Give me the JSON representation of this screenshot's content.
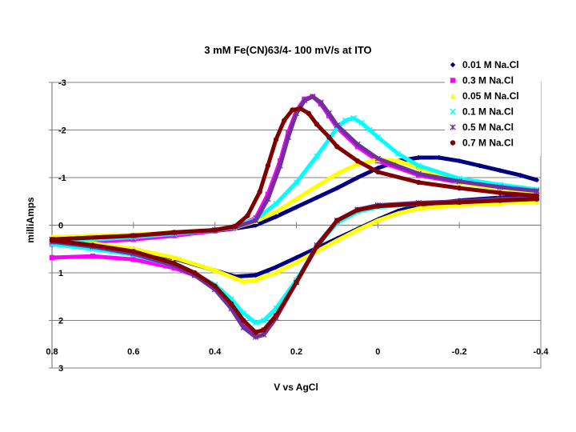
{
  "chart_data": {
    "type": "scatter",
    "title": "3 mM Fe(CN)63/4-  100 mV/s at ITO",
    "xlabel": "V vs AgCl",
    "ylabel": "milliAmps",
    "xlim": [
      0.8,
      -0.4
    ],
    "ylim": [
      -3,
      3
    ],
    "y_axis_reversed": true,
    "x_axis_reversed": true,
    "x_ticks": [
      0.8,
      0.6,
      0.4,
      0.2,
      0,
      -0.2,
      -0.4
    ],
    "x_tick_labels": [
      "0.8",
      "0.6",
      "0.4",
      "0.2",
      "0",
      "-0.2",
      "-0.4"
    ],
    "y_ticks": [
      -3,
      -2,
      -1,
      0,
      1,
      2,
      3
    ],
    "y_tick_labels": [
      "-3",
      "-2",
      "-1",
      "0",
      "1",
      "2",
      "3"
    ],
    "grid": "horizontal major gridlines",
    "legend_position": "top-right",
    "series": [
      {
        "name": "0.01 M Na.Cl",
        "color": "#000080",
        "marker": "diamond",
        "forward": {
          "x": [
            0.8,
            0.6,
            0.5,
            0.4,
            0.35,
            0.3,
            0.25,
            0.2,
            0.15,
            0.1,
            0.05,
            0.0,
            -0.05,
            -0.1,
            -0.15,
            -0.2,
            -0.25,
            -0.3,
            -0.35,
            -0.39
          ],
          "y": [
            0.3,
            0.22,
            0.18,
            0.12,
            0.07,
            0.0,
            -0.18,
            -0.38,
            -0.58,
            -0.78,
            -1.0,
            -1.2,
            -1.35,
            -1.42,
            -1.42,
            -1.35,
            -1.25,
            -1.15,
            -1.05,
            -0.95
          ]
        },
        "reverse": {
          "x": [
            -0.39,
            -0.3,
            -0.2,
            -0.1,
            -0.05,
            0.0,
            0.05,
            0.1,
            0.15,
            0.2,
            0.25,
            0.3,
            0.35,
            0.4,
            0.5,
            0.6,
            0.7,
            0.8
          ],
          "y": [
            -0.62,
            -0.58,
            -0.52,
            -0.42,
            -0.3,
            -0.12,
            0.08,
            0.28,
            0.48,
            0.68,
            0.88,
            1.05,
            1.08,
            0.95,
            0.7,
            0.5,
            0.4,
            0.32
          ]
        }
      },
      {
        "name": "0.3 M Na.Cl",
        "color": "#ff00ff",
        "marker": "square",
        "forward": {
          "x": [
            0.8,
            0.6,
            0.5,
            0.4,
            0.35,
            0.3,
            0.27,
            0.24,
            0.22,
            0.2,
            0.18,
            0.16,
            0.14,
            0.12,
            0.1,
            0.05,
            0.0,
            -0.1,
            -0.2,
            -0.3,
            -0.39
          ],
          "y": [
            0.4,
            0.3,
            0.22,
            0.12,
            0.05,
            -0.15,
            -0.65,
            -1.35,
            -1.95,
            -2.4,
            -2.65,
            -2.7,
            -2.55,
            -2.3,
            -2.05,
            -1.65,
            -1.35,
            -1.05,
            -0.9,
            -0.78,
            -0.7
          ]
        },
        "reverse": {
          "x": [
            -0.39,
            -0.3,
            -0.2,
            -0.1,
            0.0,
            0.05,
            0.1,
            0.15,
            0.2,
            0.25,
            0.28,
            0.3,
            0.33,
            0.36,
            0.4,
            0.45,
            0.5,
            0.6,
            0.7,
            0.8
          ],
          "y": [
            -0.55,
            -0.52,
            -0.48,
            -0.45,
            -0.4,
            -0.32,
            -0.08,
            0.45,
            1.2,
            1.9,
            2.2,
            2.25,
            2.05,
            1.7,
            1.32,
            1.05,
            0.9,
            0.72,
            0.65,
            0.68
          ]
        }
      },
      {
        "name": "0.05 M Na.Cl",
        "color": "#ffff00",
        "marker": "triangle",
        "forward": {
          "x": [
            0.8,
            0.6,
            0.5,
            0.4,
            0.35,
            0.3,
            0.25,
            0.2,
            0.15,
            0.1,
            0.05,
            0.0,
            -0.05,
            -0.1,
            -0.15,
            -0.2,
            -0.3,
            -0.39
          ],
          "y": [
            0.25,
            0.2,
            0.15,
            0.1,
            0.05,
            -0.08,
            -0.28,
            -0.55,
            -0.82,
            -1.08,
            -1.28,
            -1.38,
            -1.35,
            -1.2,
            -1.05,
            -0.9,
            -0.75,
            -0.68
          ]
        },
        "reverse": {
          "x": [
            -0.39,
            -0.3,
            -0.2,
            -0.1,
            -0.05,
            0.0,
            0.05,
            0.1,
            0.15,
            0.2,
            0.25,
            0.3,
            0.33,
            0.35,
            0.4,
            0.5,
            0.6,
            0.7,
            0.8
          ],
          "y": [
            -0.5,
            -0.46,
            -0.42,
            -0.35,
            -0.25,
            -0.1,
            0.1,
            0.32,
            0.55,
            0.78,
            1.0,
            1.15,
            1.18,
            1.12,
            0.95,
            0.68,
            0.5,
            0.38,
            0.3
          ]
        }
      },
      {
        "name": "0.1 M Na.Cl",
        "color": "#00ffff",
        "marker": "x",
        "forward": {
          "x": [
            0.8,
            0.6,
            0.5,
            0.4,
            0.35,
            0.3,
            0.25,
            0.2,
            0.15,
            0.12,
            0.1,
            0.08,
            0.06,
            0.04,
            0.02,
            0.0,
            -0.05,
            -0.1,
            -0.2,
            -0.3,
            -0.39
          ],
          "y": [
            0.35,
            0.25,
            0.18,
            0.1,
            0.02,
            -0.12,
            -0.45,
            -0.9,
            -1.45,
            -1.8,
            -2.05,
            -2.2,
            -2.25,
            -2.15,
            -2.0,
            -1.85,
            -1.5,
            -1.25,
            -0.98,
            -0.85,
            -0.75
          ]
        },
        "reverse": {
          "x": [
            -0.39,
            -0.3,
            -0.2,
            -0.1,
            0.0,
            0.05,
            0.1,
            0.15,
            0.2,
            0.25,
            0.28,
            0.3,
            0.33,
            0.36,
            0.4,
            0.45,
            0.5,
            0.6,
            0.7,
            0.8
          ],
          "y": [
            -0.55,
            -0.52,
            -0.48,
            -0.45,
            -0.38,
            -0.28,
            -0.05,
            0.45,
            1.15,
            1.75,
            2.0,
            2.05,
            1.85,
            1.55,
            1.25,
            1.02,
            0.85,
            0.62,
            0.5,
            0.4
          ]
        }
      },
      {
        "name": "0.5 M Na.Cl",
        "color": "#7030a0",
        "marker": "star",
        "forward": {
          "x": [
            0.8,
            0.6,
            0.5,
            0.4,
            0.35,
            0.3,
            0.27,
            0.24,
            0.22,
            0.2,
            0.18,
            0.16,
            0.14,
            0.12,
            0.1,
            0.05,
            0.0,
            -0.1,
            -0.2,
            -0.3,
            -0.39
          ],
          "y": [
            0.3,
            0.22,
            0.16,
            0.1,
            0.04,
            -0.1,
            -0.55,
            -1.25,
            -1.85,
            -2.35,
            -2.62,
            -2.7,
            -2.58,
            -2.35,
            -2.1,
            -1.7,
            -1.4,
            -1.08,
            -0.92,
            -0.8,
            -0.72
          ]
        },
        "reverse": {
          "x": [
            -0.39,
            -0.3,
            -0.2,
            -0.1,
            0.0,
            0.05,
            0.1,
            0.15,
            0.2,
            0.25,
            0.28,
            0.3,
            0.33,
            0.36,
            0.4,
            0.45,
            0.5,
            0.6,
            0.7,
            0.8
          ],
          "y": [
            -0.58,
            -0.55,
            -0.5,
            -0.47,
            -0.42,
            -0.33,
            -0.1,
            0.42,
            1.2,
            1.95,
            2.3,
            2.35,
            2.15,
            1.75,
            1.35,
            1.05,
            0.85,
            0.6,
            0.45,
            0.35
          ]
        }
      },
      {
        "name": "0.7 M Na.Cl",
        "color": "#800000",
        "marker": "circle",
        "forward": {
          "x": [
            0.8,
            0.6,
            0.5,
            0.4,
            0.35,
            0.32,
            0.29,
            0.27,
            0.25,
            0.23,
            0.21,
            0.19,
            0.17,
            0.15,
            0.12,
            0.1,
            0.05,
            0.0,
            -0.1,
            -0.2,
            -0.3,
            -0.39
          ],
          "y": [
            0.3,
            0.22,
            0.15,
            0.1,
            0.02,
            -0.2,
            -0.7,
            -1.25,
            -1.8,
            -2.2,
            -2.42,
            -2.45,
            -2.35,
            -2.12,
            -1.85,
            -1.65,
            -1.35,
            -1.12,
            -0.9,
            -0.78,
            -0.68,
            -0.62
          ]
        },
        "reverse": {
          "x": [
            -0.39,
            -0.3,
            -0.2,
            -0.1,
            0.0,
            0.05,
            0.1,
            0.15,
            0.2,
            0.25,
            0.28,
            0.3,
            0.33,
            0.36,
            0.4,
            0.45,
            0.5,
            0.6,
            0.7,
            0.8
          ],
          "y": [
            -0.55,
            -0.52,
            -0.48,
            -0.45,
            -0.4,
            -0.32,
            -0.1,
            0.45,
            1.2,
            1.9,
            2.2,
            2.25,
            2.0,
            1.65,
            1.28,
            1.0,
            0.8,
            0.55,
            0.42,
            0.32
          ]
        }
      }
    ]
  }
}
